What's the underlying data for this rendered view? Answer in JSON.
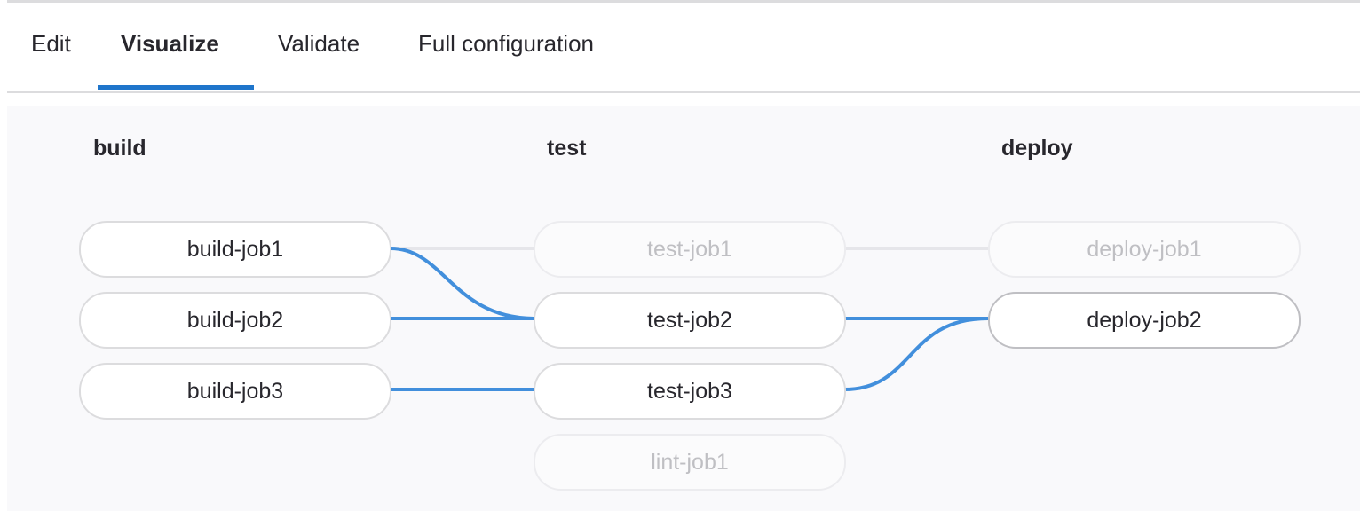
{
  "tabs": [
    {
      "label": "Edit",
      "active": false
    },
    {
      "label": "Visualize",
      "active": true
    },
    {
      "label": "Validate",
      "active": false
    },
    {
      "label": "Full configuration",
      "active": false
    }
  ],
  "colors": {
    "accent": "#1f75cb",
    "link_highlight": "#428fdc",
    "link_default": "#e6e6ea"
  },
  "stages": [
    {
      "name": "build",
      "jobs": [
        "build-job1",
        "build-job2",
        "build-job3"
      ]
    },
    {
      "name": "test",
      "jobs": [
        "test-job1",
        "test-job2",
        "test-job3",
        "lint-job1"
      ]
    },
    {
      "name": "deploy",
      "jobs": [
        "deploy-job1",
        "deploy-job2"
      ]
    }
  ],
  "highlighted_job": "deploy-job2",
  "faded_jobs": [
    "test-job1",
    "lint-job1",
    "deploy-job1"
  ]
}
